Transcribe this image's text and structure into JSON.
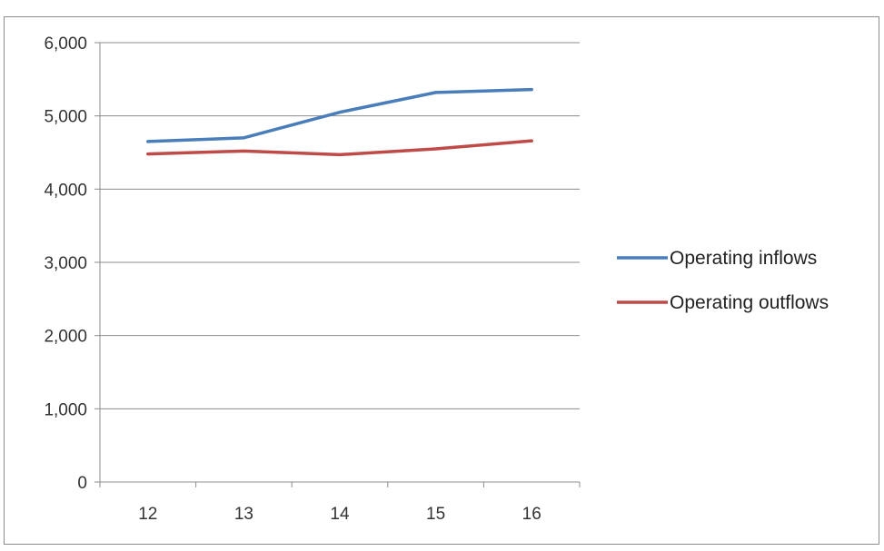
{
  "chart_data": {
    "type": "line",
    "categories": [
      "12",
      "13",
      "14",
      "15",
      "16"
    ],
    "series": [
      {
        "name": "Operating inflows",
        "color": "#4a7ebb",
        "values": [
          4650,
          4700,
          5050,
          5320,
          5360
        ]
      },
      {
        "name": "Operating outflows",
        "color": "#be4b48",
        "values": [
          4480,
          4520,
          4470,
          4550,
          4660
        ]
      }
    ],
    "yticks": [
      0,
      1000,
      2000,
      3000,
      4000,
      5000,
      6000
    ],
    "ytick_labels": [
      "0",
      "1,000",
      "2,000",
      "3,000",
      "4,000",
      "5,000",
      "6,000"
    ],
    "ylim": [
      0,
      6000
    ],
    "grid": "horizontal",
    "legend_position": "right"
  }
}
